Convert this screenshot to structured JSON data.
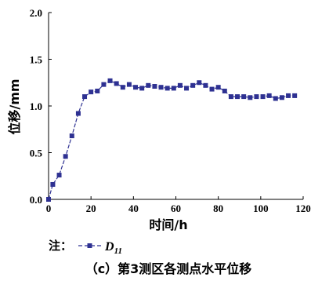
{
  "chart_data": {
    "type": "line",
    "xlabel": "时间/h",
    "ylabel": "位移/mm",
    "xlim": [
      0,
      120
    ],
    "ylim": [
      0,
      2.0
    ],
    "xticks": [
      "0",
      "20",
      "40",
      "60",
      "80",
      "100",
      "120"
    ],
    "xtick_values": [
      0,
      20,
      40,
      60,
      80,
      100,
      120
    ],
    "yticks": [
      "0.0",
      "0.5",
      "1.0",
      "1.5",
      "2.0"
    ],
    "ytick_values": [
      0,
      0.5,
      1.0,
      1.5,
      2.0
    ],
    "grid": false,
    "color": "#2e3192",
    "series": [
      {
        "name": "D",
        "name_subscript": "11",
        "x": [
          0,
          2,
          5,
          8,
          11,
          14,
          17,
          20,
          23,
          26,
          29,
          32,
          35,
          38,
          41,
          44,
          47,
          50,
          53,
          56,
          59,
          62,
          65,
          68,
          71,
          74,
          77,
          80,
          83,
          86,
          89,
          92,
          95,
          98,
          101,
          104,
          107,
          110,
          113,
          116
        ],
        "y": [
          0,
          0.16,
          0.26,
          0.46,
          0.68,
          0.92,
          1.1,
          1.15,
          1.16,
          1.23,
          1.27,
          1.24,
          1.2,
          1.23,
          1.2,
          1.19,
          1.22,
          1.21,
          1.2,
          1.19,
          1.19,
          1.22,
          1.19,
          1.22,
          1.25,
          1.22,
          1.18,
          1.2,
          1.16,
          1.1,
          1.1,
          1.1,
          1.09,
          1.1,
          1.1,
          1.11,
          1.08,
          1.09,
          1.11,
          1.11
        ]
      }
    ],
    "legend_label": "注：",
    "caption": "（c）第3测区各测点水平位移"
  }
}
